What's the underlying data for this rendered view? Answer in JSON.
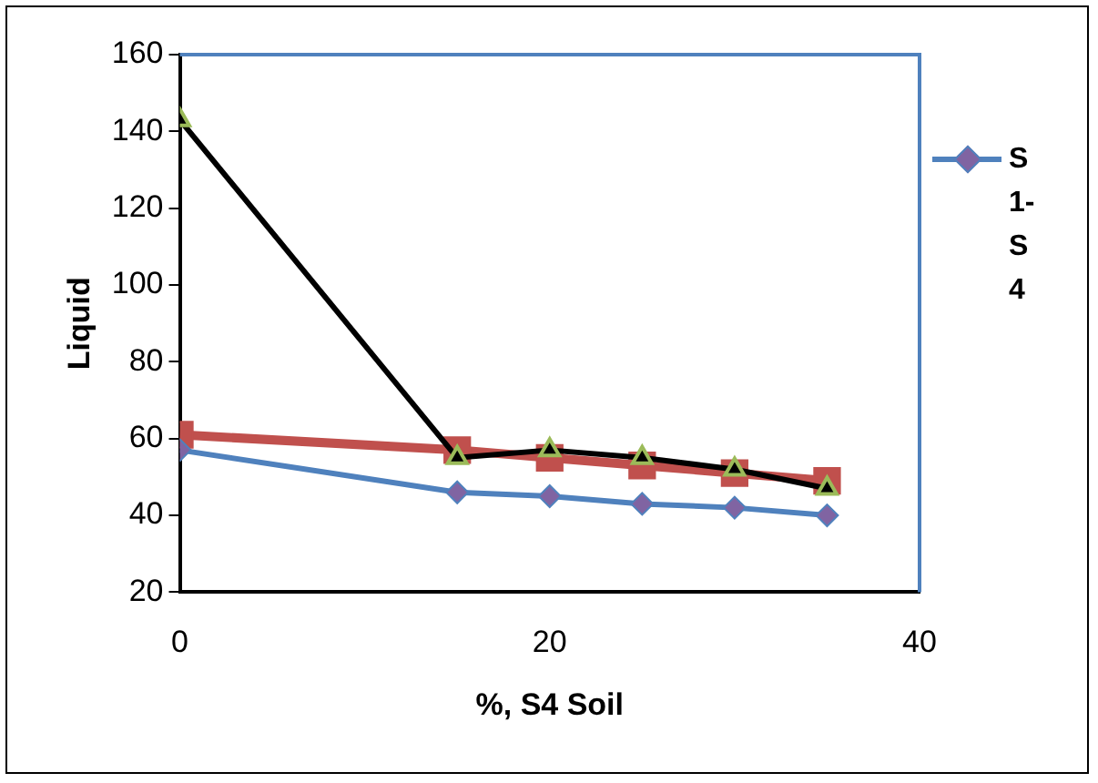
{
  "chart_data": {
    "type": "line",
    "xlabel": "%, S4 Soil",
    "ylabel": "Liquid",
    "xlim": [
      0,
      40
    ],
    "xticks": [
      0,
      20,
      40
    ],
    "ylim": [
      20,
      160
    ],
    "yticks": [
      20,
      40,
      60,
      80,
      100,
      120,
      140,
      160
    ],
    "grid": false,
    "legend": "right",
    "line_style": "solid",
    "series": [
      {
        "name": "S 1-S 4",
        "color": "#4f81bd",
        "x": [
          0,
          15,
          20,
          25,
          30,
          35
        ],
        "values": [
          57,
          46,
          45,
          43,
          42,
          40
        ],
        "marker": "diamond"
      },
      {
        "color": "#000000",
        "x": [
          0,
          15,
          20,
          25,
          30,
          35
        ],
        "values": [
          143,
          55,
          57,
          55,
          52,
          47
        ],
        "marker": "triangle"
      },
      {
        "color": "#c0504d",
        "x": [
          0,
          15,
          20,
          25,
          30,
          35
        ],
        "values": [
          61,
          57,
          55,
          53,
          51,
          49
        ],
        "marker": "square"
      }
    ]
  }
}
